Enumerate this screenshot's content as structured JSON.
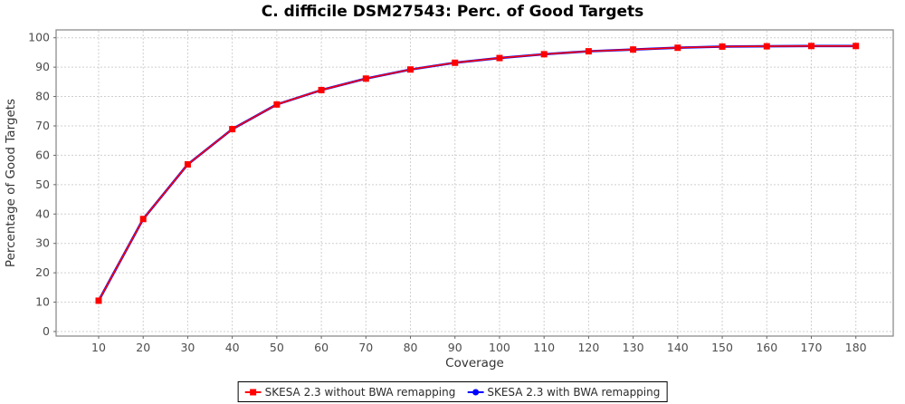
{
  "title": "C. difficile DSM27543: Perc. of Good Targets",
  "chart_data": {
    "type": "line",
    "title": "C. difficile DSM27543: Perc. of Good Targets",
    "xlabel": "Coverage",
    "ylabel": "Percentage of Good Targets",
    "x": [
      10,
      20,
      30,
      40,
      50,
      60,
      70,
      80,
      90,
      100,
      110,
      120,
      130,
      140,
      150,
      160,
      170,
      180
    ],
    "series": [
      {
        "name": "SKESA 2.3 without BWA remapping",
        "color": "#ff0000",
        "marker": "square",
        "values": [
          10.5,
          38.3,
          56.9,
          68.9,
          77.3,
          82.2,
          86.1,
          89.2,
          91.5,
          93.1,
          94.4,
          95.4,
          96.0,
          96.6,
          97.0,
          97.1,
          97.2,
          97.2
        ]
      },
      {
        "name": "SKESA 2.3 with BWA remapping",
        "color": "#0000ff",
        "marker": "circle",
        "values": [
          10.5,
          38.3,
          56.9,
          68.9,
          77.3,
          82.2,
          86.1,
          89.2,
          91.5,
          93.1,
          94.4,
          95.4,
          96.0,
          96.6,
          97.0,
          97.1,
          97.2,
          97.2
        ]
      }
    ],
    "xticks": [
      10,
      20,
      30,
      40,
      50,
      60,
      70,
      80,
      90,
      100,
      110,
      120,
      130,
      140,
      150,
      160,
      170,
      180
    ],
    "yticks": [
      0,
      10,
      20,
      30,
      40,
      50,
      60,
      70,
      80,
      90,
      100
    ],
    "xlim": [
      10,
      180
    ],
    "ylim": [
      0,
      100
    ],
    "grid": true,
    "legend_position": "bottom"
  },
  "colors": {
    "grid": "#cfcfcf",
    "plot_border": "#848484",
    "tick": "#666666",
    "tick_label": "#4d4d4d",
    "axis_label": "#333333",
    "title": "#000000"
  }
}
